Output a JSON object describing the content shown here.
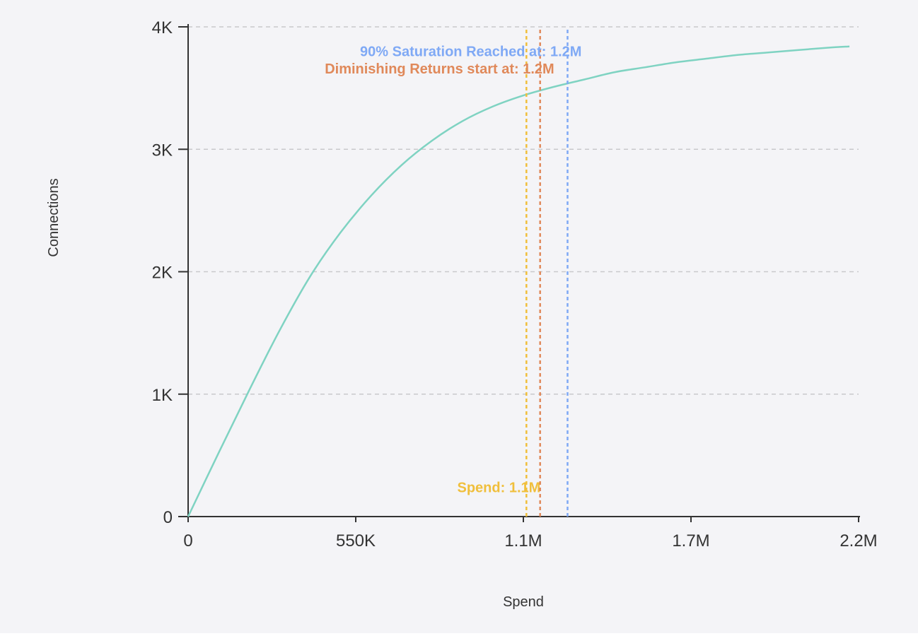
{
  "chart_data": {
    "type": "line",
    "xlabel": "Spend",
    "ylabel": "Connections",
    "xlim": [
      0,
      2200000
    ],
    "ylim": [
      0,
      4000
    ],
    "grid": true,
    "x_ticks": [
      {
        "value": 0,
        "label": "0"
      },
      {
        "value": 550000,
        "label": "550K"
      },
      {
        "value": 1100000,
        "label": "1.1M"
      },
      {
        "value": 1650000,
        "label": "1.7M"
      },
      {
        "value": 2200000,
        "label": "2.2M"
      }
    ],
    "y_ticks": [
      {
        "value": 0,
        "label": "0"
      },
      {
        "value": 1000,
        "label": "1K"
      },
      {
        "value": 2000,
        "label": "2K"
      },
      {
        "value": 3000,
        "label": "3K"
      },
      {
        "value": 4000,
        "label": "4K"
      }
    ],
    "series": [
      {
        "color": "#7fd3c2",
        "x": [
          0,
          100000,
          200000,
          300000,
          400000,
          500000,
          600000,
          700000,
          800000,
          900000,
          1000000,
          1100000,
          1200000,
          1300000,
          1400000,
          1500000,
          1600000,
          1700000,
          1800000,
          1900000,
          2000000,
          2100000,
          2170000
        ],
        "y": [
          0,
          520,
          1030,
          1520,
          1960,
          2320,
          2620,
          2870,
          3070,
          3230,
          3350,
          3440,
          3510,
          3570,
          3630,
          3670,
          3710,
          3740,
          3770,
          3790,
          3810,
          3830,
          3840
        ]
      }
    ],
    "reference_lines": [
      {
        "x": 1110000,
        "color": "#f0bf3c",
        "label": "Spend: 1.1M",
        "label_y": 200
      },
      {
        "x": 1155000,
        "color": "#e0895a",
        "label": "Diminishing Returns start at: 1.2M",
        "label_y": 3620
      },
      {
        "x": 1245000,
        "color": "#7fa9f5",
        "label": "90% Saturation Reached at: 1.2M",
        "label_y": 3760
      }
    ]
  }
}
